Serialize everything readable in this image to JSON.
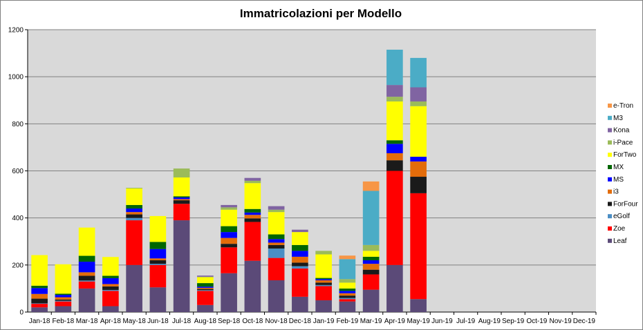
{
  "chart_data": {
    "type": "stacked-bar",
    "title": "Immatricolazioni per Modello",
    "ylim": [
      0,
      1200
    ],
    "yticks": [
      0,
      200,
      400,
      600,
      800,
      1000,
      1200
    ],
    "grid": true,
    "legend_position": "right",
    "categories": [
      "Jan-18",
      "Feb-18",
      "Mar-18",
      "Apr-18",
      "May-18",
      "Jun-18",
      "Jul-18",
      "Aug-18",
      "Sep-18",
      "Oct-18",
      "Nov-18",
      "Dec-18",
      "Jan-19",
      "Feb-19",
      "Mar-19",
      "Apr-19",
      "May-19",
      "Jun-19",
      "Jul-19",
      "Aug-19",
      "Sep-19",
      "Oct-19",
      "Nov-19",
      "Dec-19"
    ],
    "series": [
      {
        "name": "Leaf",
        "color": "#5b4a78",
        "values": [
          20,
          25,
          100,
          25,
          200,
          105,
          390,
          30,
          165,
          218,
          135,
          65,
          50,
          45,
          95,
          200,
          55,
          0,
          0,
          0,
          0,
          0,
          0,
          0
        ]
      },
      {
        "name": "Zoe",
        "color": "#ff0000",
        "values": [
          15,
          20,
          30,
          65,
          190,
          95,
          70,
          60,
          110,
          165,
          95,
          120,
          60,
          10,
          65,
          400,
          450,
          0,
          0,
          0,
          0,
          0,
          0,
          0
        ]
      },
      {
        "name": "eGolf",
        "color": "#4a8ec4",
        "values": [
          2,
          3,
          4,
          4,
          10,
          5,
          0,
          3,
          0,
          0,
          40,
          10,
          5,
          5,
          0,
          0,
          0,
          0,
          0,
          0,
          0,
          0,
          0,
          0
        ]
      },
      {
        "name": "ForFour",
        "color": "#1a1a1a",
        "values": [
          20,
          5,
          20,
          15,
          15,
          15,
          15,
          5,
          15,
          15,
          15,
          15,
          10,
          10,
          20,
          45,
          70,
          0,
          0,
          0,
          0,
          0,
          0,
          0
        ]
      },
      {
        "name": "i3",
        "color": "#e36c0a",
        "values": [
          20,
          10,
          15,
          10,
          10,
          8,
          5,
          5,
          25,
          15,
          10,
          25,
          10,
          10,
          25,
          30,
          65,
          0,
          0,
          0,
          0,
          0,
          0,
          0
        ]
      },
      {
        "name": "MS",
        "color": "#0000ff",
        "values": [
          25,
          10,
          45,
          25,
          15,
          40,
          7,
          5,
          25,
          10,
          15,
          25,
          5,
          10,
          15,
          40,
          20,
          0,
          0,
          0,
          0,
          0,
          0,
          0
        ]
      },
      {
        "name": "MX",
        "color": "#006600",
        "values": [
          10,
          5,
          25,
          10,
          15,
          30,
          5,
          15,
          25,
          15,
          20,
          25,
          5,
          10,
          15,
          15,
          0,
          0,
          0,
          0,
          0,
          0,
          0,
          0
        ]
      },
      {
        "name": "ForTwo",
        "color": "#ffff00",
        "values": [
          130,
          125,
          120,
          80,
          70,
          110,
          80,
          25,
          70,
          110,
          95,
          55,
          100,
          25,
          25,
          165,
          215,
          0,
          0,
          0,
          0,
          0,
          0,
          0
        ]
      },
      {
        "name": "i-Pace",
        "color": "#9bbb59",
        "values": [
          0,
          0,
          0,
          0,
          3,
          0,
          38,
          2,
          10,
          10,
          10,
          0,
          15,
          15,
          25,
          20,
          20,
          0,
          0,
          0,
          0,
          0,
          0,
          0
        ]
      },
      {
        "name": "Kona",
        "color": "#8064a2",
        "values": [
          0,
          0,
          0,
          0,
          0,
          0,
          0,
          5,
          10,
          12,
          15,
          10,
          0,
          0,
          0,
          50,
          60,
          0,
          0,
          0,
          0,
          0,
          0,
          0
        ]
      },
      {
        "name": "M3",
        "color": "#4bacc6",
        "values": [
          0,
          0,
          0,
          0,
          0,
          0,
          0,
          0,
          0,
          0,
          0,
          0,
          0,
          85,
          230,
          150,
          125,
          0,
          0,
          0,
          0,
          0,
          0,
          0
        ]
      },
      {
        "name": "e-Tron",
        "color": "#f79646",
        "values": [
          0,
          0,
          0,
          0,
          0,
          0,
          0,
          0,
          0,
          0,
          0,
          0,
          0,
          15,
          40,
          0,
          0,
          0,
          0,
          0,
          0,
          0,
          0,
          0
        ]
      }
    ]
  }
}
